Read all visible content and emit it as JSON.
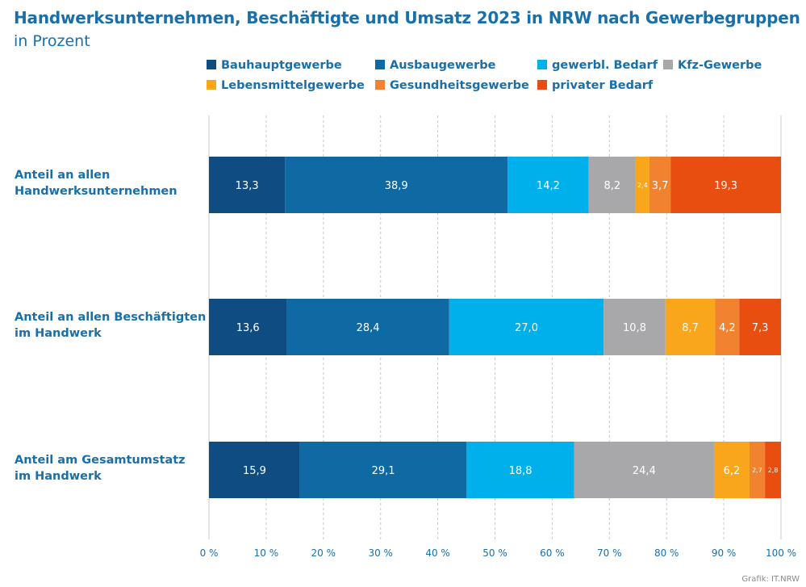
{
  "title": "Handwerksunternehmen, Beschäftigte und Umsatz 2023 in NRW nach Gewerbegruppen",
  "subtitle": "in Prozent",
  "credit": "Grafik: IT.NRW",
  "colors": {
    "Bauhauptgewerbe": "#0f4c81",
    "Ausbaugewerbe": "#0f69a3",
    "gewerbl. Bedarf": "#00b0eb",
    "Kfz-Gewerbe": "#a8a8aa",
    "Lebensmittelgewerbe": "#f9a61c",
    "Gesundheitsgewerbe": "#f08230",
    "privater Bedarf": "#e84e10",
    "label": "#1a6fa8",
    "grid": "#c8c8c8"
  },
  "chart_data": {
    "type": "bar",
    "orientation": "horizontal",
    "stacked": true,
    "categories": [
      "Anteil an allen Handwerksunternehmen",
      "Anteil an allen Beschäftigten im Handwerk",
      "Anteil am Gesamtumstatz im Handwerk"
    ],
    "category_lines": [
      [
        "Anteil an allen",
        "Handwerksunternehmen"
      ],
      [
        "Anteil an allen Beschäftigten",
        "im Handwerk"
      ],
      [
        "Anteil am Gesamtumstatz",
        "im Handwerk"
      ]
    ],
    "series": [
      {
        "name": "Bauhauptgewerbe",
        "values": [
          13.3,
          13.6,
          15.9
        ],
        "labels": [
          "13,3",
          "13,6",
          "15,9"
        ]
      },
      {
        "name": "Ausbaugewerbe",
        "values": [
          38.9,
          28.4,
          29.1
        ],
        "labels": [
          "38,9",
          "28,4",
          "29,1"
        ]
      },
      {
        "name": "gewerbl. Bedarf",
        "values": [
          14.2,
          27.0,
          18.8
        ],
        "labels": [
          "14,2",
          "27,0",
          "18,8"
        ]
      },
      {
        "name": "Kfz-Gewerbe",
        "values": [
          8.2,
          10.8,
          24.4
        ],
        "labels": [
          "8,2",
          "10,8",
          "24,4"
        ]
      },
      {
        "name": "Lebensmittelgewerbe",
        "values": [
          2.4,
          8.7,
          6.2
        ],
        "labels": [
          "2,4",
          "8,7",
          "6,2"
        ]
      },
      {
        "name": "Gesundheitsgewerbe",
        "values": [
          3.7,
          4.2,
          2.7
        ],
        "labels": [
          "3,7",
          "4,2",
          "2,7"
        ]
      },
      {
        "name": "privater Bedarf",
        "values": [
          19.3,
          7.3,
          2.8
        ],
        "labels": [
          "19,3",
          "7,3",
          "2,8"
        ]
      }
    ],
    "x_ticks": [
      0,
      10,
      20,
      30,
      40,
      50,
      60,
      70,
      80,
      90,
      100
    ],
    "x_tick_labels": [
      "0 %",
      "10 %",
      "20 %",
      "30 %",
      "40 %",
      "50 %",
      "60 %",
      "70 %",
      "80 %",
      "90 %",
      "100 %"
    ],
    "xlim": [
      0,
      100
    ],
    "grid": true,
    "legend": "top"
  }
}
